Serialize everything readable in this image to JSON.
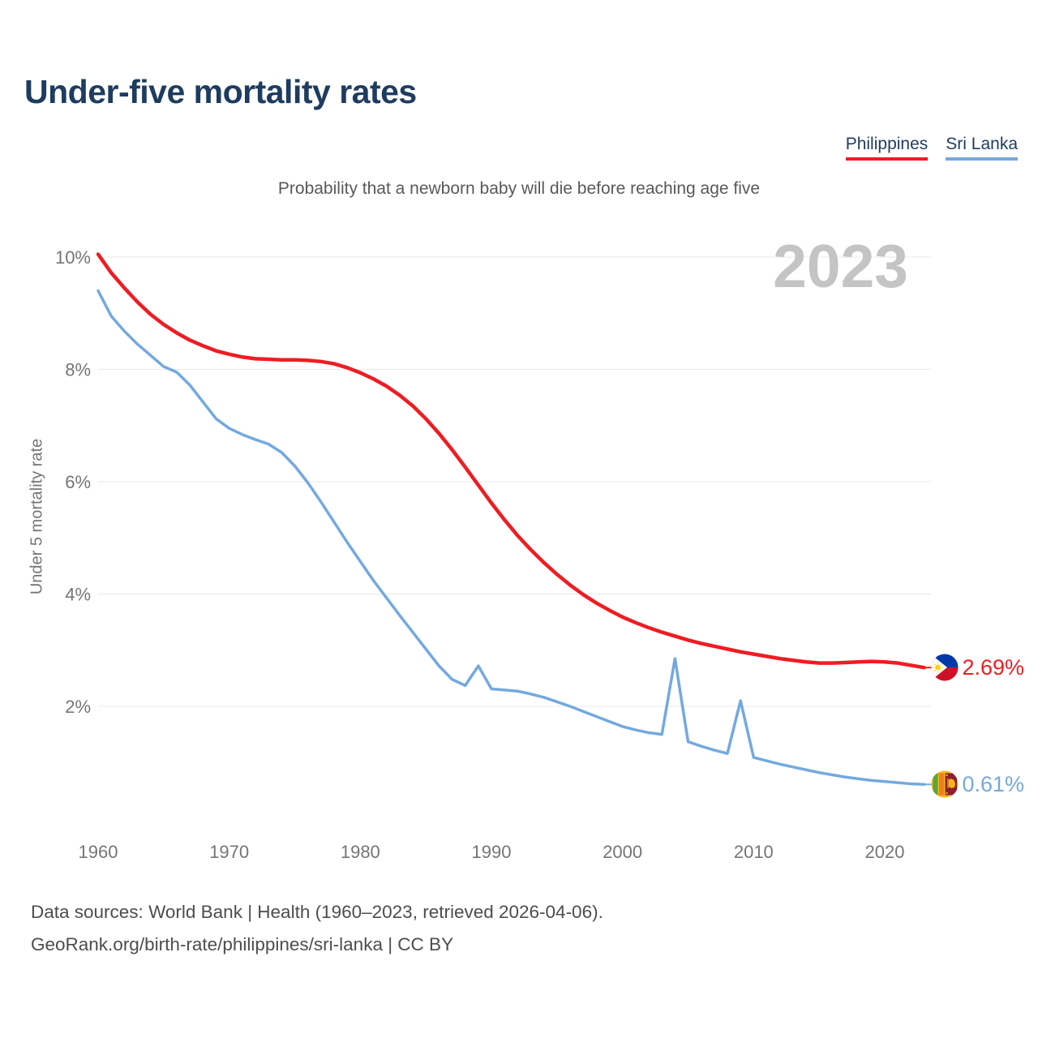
{
  "title": "Under-five mortality rates",
  "subtitle": "Probability that a newborn baby will die before reaching age five",
  "watermark": "2023",
  "legend": {
    "items": [
      {
        "label": "Philippines",
        "color": "#ee1d23"
      },
      {
        "label": "Sri Lanka",
        "color": "#74a9df"
      }
    ]
  },
  "footer": {
    "line1": "Data sources: World Bank | Health (1960–2023, retrieved 2026-04-06).",
    "line2": "GeoRank.org/birth-rate/philippines/sri-lanka | CC BY"
  },
  "chart_data": {
    "type": "line",
    "title": "Under-five mortality rates",
    "subtitle": "Probability that a newborn baby will die before reaching age five",
    "xlabel": "",
    "ylabel": "Under 5 mortality rate",
    "unit": "%",
    "grid": "horizontal",
    "legend_position": "top-right",
    "xlim": [
      1960,
      2023
    ],
    "ylim": [
      0,
      10.1
    ],
    "x_ticks": [
      1960,
      1970,
      1980,
      1990,
      2000,
      2010,
      2020
    ],
    "y_ticks": [
      {
        "value": 10,
        "label": "10%"
      },
      {
        "value": 8,
        "label": "8%"
      },
      {
        "value": 6,
        "label": "6%"
      },
      {
        "value": 4,
        "label": "4%"
      },
      {
        "value": 2,
        "label": "2%"
      }
    ],
    "years": [
      1960,
      1961,
      1962,
      1963,
      1964,
      1965,
      1966,
      1967,
      1968,
      1969,
      1970,
      1971,
      1972,
      1973,
      1974,
      1975,
      1976,
      1977,
      1978,
      1979,
      1980,
      1981,
      1982,
      1983,
      1984,
      1985,
      1986,
      1987,
      1988,
      1989,
      1990,
      1991,
      1992,
      1993,
      1994,
      1995,
      1996,
      1997,
      1998,
      1999,
      2000,
      2001,
      2002,
      2003,
      2004,
      2005,
      2006,
      2007,
      2008,
      2009,
      2010,
      2011,
      2012,
      2013,
      2014,
      2015,
      2016,
      2017,
      2018,
      2019,
      2020,
      2021,
      2022,
      2023
    ],
    "series": [
      {
        "name": "Philippines",
        "color": "#ee1d23",
        "line_width": 4.5,
        "end_label": "2.69%",
        "values": [
          10.05,
          9.72,
          9.45,
          9.2,
          8.98,
          8.8,
          8.65,
          8.52,
          8.42,
          8.33,
          8.27,
          8.22,
          8.19,
          8.18,
          8.17,
          8.17,
          8.16,
          8.14,
          8.1,
          8.03,
          7.94,
          7.83,
          7.7,
          7.54,
          7.35,
          7.12,
          6.86,
          6.57,
          6.26,
          5.94,
          5.62,
          5.32,
          5.04,
          4.79,
          4.56,
          4.35,
          4.16,
          3.99,
          3.84,
          3.71,
          3.59,
          3.49,
          3.4,
          3.32,
          3.25,
          3.18,
          3.12,
          3.07,
          3.02,
          2.97,
          2.93,
          2.89,
          2.85,
          2.82,
          2.79,
          2.77,
          2.77,
          2.78,
          2.79,
          2.8,
          2.79,
          2.77,
          2.73,
          2.69
        ]
      },
      {
        "name": "Sri Lanka",
        "color": "#74a9df",
        "line_width": 3.5,
        "end_label": "0.61%",
        "values": [
          9.4,
          8.95,
          8.68,
          8.45,
          8.25,
          8.05,
          7.95,
          7.72,
          7.42,
          7.12,
          6.95,
          6.84,
          6.75,
          6.67,
          6.52,
          6.28,
          5.98,
          5.64,
          5.28,
          4.92,
          4.58,
          4.24,
          3.93,
          3.62,
          3.32,
          3.02,
          2.72,
          2.48,
          2.37,
          2.72,
          2.31,
          2.29,
          2.27,
          2.22,
          2.16,
          2.08,
          2.0,
          1.91,
          1.82,
          1.73,
          1.64,
          1.58,
          1.53,
          1.5,
          2.85,
          1.37,
          1.29,
          1.22,
          1.16,
          2.1,
          1.09,
          1.03,
          0.97,
          0.92,
          0.87,
          0.82,
          0.78,
          0.74,
          0.71,
          0.68,
          0.66,
          0.64,
          0.62,
          0.61
        ]
      }
    ]
  }
}
